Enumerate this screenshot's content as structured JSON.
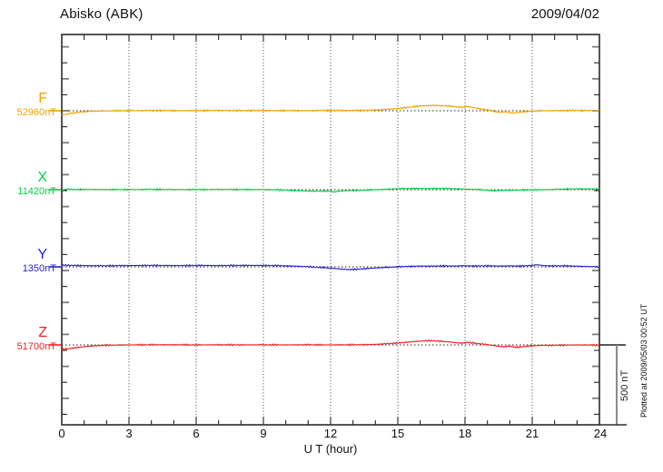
{
  "header": {
    "title": "Abisko (ABK)",
    "date": "2009/04/02"
  },
  "xaxis": {
    "label": "U T (hour)",
    "tick_labels": [
      "0",
      "3",
      "6",
      "9",
      "12",
      "15",
      "18",
      "21",
      "24"
    ],
    "min": 0,
    "max": 24
  },
  "scale_bar": {
    "label": "500 nT",
    "value_nT": 500
  },
  "note": {
    "plotted_at": "Plotted at 2009/05/03 00:52 UT"
  },
  "channels": [
    {
      "id": "F",
      "label": "F",
      "baseline_label": "52960nT",
      "color": "#f2a200"
    },
    {
      "id": "X",
      "label": "X",
      "baseline_label": "11420nT",
      "color": "#00d044"
    },
    {
      "id": "Y",
      "label": "Y",
      "baseline_label": "1350nT",
      "color": "#2626cc"
    },
    {
      "id": "Z",
      "label": "Z",
      "baseline_label": "51700nT",
      "color": "#ee2222"
    }
  ],
  "chart_data": {
    "type": "line",
    "title": "Abisko (ABK) magnetogram",
    "date": "2009/04/02",
    "xlabel": "U T (hour)",
    "x_range": [
      0,
      24
    ],
    "grid": "dotted vertical every 3 h, dotted horizontal at each channel baseline",
    "nT_per_tick_division": 100,
    "scale_bar_nT": 500,
    "series": [
      {
        "name": "F",
        "baseline_nT": 52960,
        "color": "#f2a200",
        "points_hour_offsetnT": [
          [
            0,
            -26
          ],
          [
            0.4,
            -17
          ],
          [
            0.8,
            -8
          ],
          [
            1.3,
            -3
          ],
          [
            2,
            -1
          ],
          [
            3,
            1
          ],
          [
            4,
            2
          ],
          [
            5,
            1
          ],
          [
            6,
            1
          ],
          [
            7,
            2
          ],
          [
            8,
            1
          ],
          [
            9,
            2
          ],
          [
            10,
            1
          ],
          [
            11,
            1
          ],
          [
            12,
            2
          ],
          [
            13,
            2
          ],
          [
            13.8,
            3
          ],
          [
            14.3,
            7
          ],
          [
            15,
            14
          ],
          [
            15.5,
            22
          ],
          [
            16,
            30
          ],
          [
            16.6,
            34
          ],
          [
            17.2,
            30
          ],
          [
            17.6,
            25
          ],
          [
            17.9,
            21
          ],
          [
            18.1,
            27
          ],
          [
            18.4,
            19
          ],
          [
            18.7,
            11
          ],
          [
            19.1,
            3
          ],
          [
            19.5,
            -10
          ],
          [
            19.8,
            -6
          ],
          [
            20.1,
            -14
          ],
          [
            20.5,
            -8
          ],
          [
            20.9,
            -3
          ],
          [
            21.3,
            0
          ],
          [
            22,
            1
          ],
          [
            23,
            2
          ],
          [
            24,
            1
          ]
        ]
      },
      {
        "name": "X",
        "baseline_nT": 11420,
        "color": "#00d044",
        "points_hour_offsetnT": [
          [
            0,
            -3
          ],
          [
            0.2,
            3
          ],
          [
            0.6,
            1
          ],
          [
            1,
            2
          ],
          [
            2,
            1
          ],
          [
            3,
            1
          ],
          [
            4,
            2
          ],
          [
            5,
            1
          ],
          [
            6,
            1
          ],
          [
            7,
            2
          ],
          [
            8,
            1
          ],
          [
            9,
            1
          ],
          [
            9.5,
            0
          ],
          [
            10,
            -3
          ],
          [
            10.5,
            -6
          ],
          [
            11,
            -8
          ],
          [
            11.5,
            -9
          ],
          [
            12,
            -8
          ],
          [
            12.15,
            -15
          ],
          [
            12.35,
            -9
          ],
          [
            12.7,
            -6
          ],
          [
            13,
            -5
          ],
          [
            13.5,
            -3
          ],
          [
            14,
            0
          ],
          [
            14.5,
            3
          ],
          [
            15,
            6
          ],
          [
            15.5,
            7
          ],
          [
            16,
            8
          ],
          [
            16.5,
            7
          ],
          [
            17,
            8
          ],
          [
            17.5,
            6
          ],
          [
            18,
            4
          ],
          [
            18.5,
            2
          ],
          [
            19,
            -3
          ],
          [
            19.3,
            -7
          ],
          [
            19.6,
            -5
          ],
          [
            20,
            -4
          ],
          [
            20.5,
            -2
          ],
          [
            21,
            -1
          ],
          [
            21.5,
            0
          ],
          [
            22,
            2
          ],
          [
            22.5,
            4
          ],
          [
            23,
            5
          ],
          [
            23.5,
            5
          ],
          [
            24,
            6
          ]
        ]
      },
      {
        "name": "Y",
        "baseline_nT": 1350,
        "color": "#2626cc",
        "points_hour_offsetnT": [
          [
            0,
            11
          ],
          [
            0.5,
            9
          ],
          [
            1,
            8
          ],
          [
            2,
            7
          ],
          [
            3,
            8
          ],
          [
            4,
            9
          ],
          [
            5,
            8
          ],
          [
            6,
            9
          ],
          [
            7,
            8
          ],
          [
            8,
            9
          ],
          [
            9,
            9
          ],
          [
            9.5,
            8
          ],
          [
            10,
            6
          ],
          [
            10.5,
            4
          ],
          [
            11,
            1
          ],
          [
            11.5,
            -3
          ],
          [
            12,
            -8
          ],
          [
            12.4,
            -13
          ],
          [
            12.8,
            -17
          ],
          [
            13.2,
            -15
          ],
          [
            13.6,
            -11
          ],
          [
            14,
            -7
          ],
          [
            14.5,
            -3
          ],
          [
            15,
            0
          ],
          [
            15.5,
            3
          ],
          [
            16,
            5
          ],
          [
            16.5,
            4
          ],
          [
            17,
            6
          ],
          [
            17.5,
            5
          ],
          [
            18,
            7
          ],
          [
            18.5,
            5
          ],
          [
            19,
            7
          ],
          [
            19.5,
            5
          ],
          [
            20,
            6
          ],
          [
            20.5,
            5
          ],
          [
            21,
            9
          ],
          [
            21.2,
            13
          ],
          [
            21.5,
            8
          ],
          [
            22,
            6
          ],
          [
            22.5,
            7
          ],
          [
            23,
            4
          ],
          [
            23.5,
            2
          ],
          [
            24,
            0
          ]
        ]
      },
      {
        "name": "Z",
        "baseline_nT": 51700,
        "color": "#ee2222",
        "points_hour_offsetnT": [
          [
            0,
            -28
          ],
          [
            0.4,
            -22
          ],
          [
            0.8,
            -14
          ],
          [
            1.2,
            -8
          ],
          [
            1.6,
            -4
          ],
          [
            2,
            -2
          ],
          [
            3,
            0
          ],
          [
            4,
            1
          ],
          [
            5,
            1
          ],
          [
            6,
            0
          ],
          [
            7,
            1
          ],
          [
            8,
            0
          ],
          [
            9,
            1
          ],
          [
            10,
            0
          ],
          [
            11,
            1
          ],
          [
            12,
            0
          ],
          [
            13,
            1
          ],
          [
            13.7,
            2
          ],
          [
            14.2,
            5
          ],
          [
            15,
            12
          ],
          [
            15.5,
            18
          ],
          [
            16,
            24
          ],
          [
            16.4,
            27
          ],
          [
            16.8,
            24
          ],
          [
            17.2,
            20
          ],
          [
            17.6,
            14
          ],
          [
            17.9,
            11
          ],
          [
            18.1,
            17
          ],
          [
            18.3,
            13
          ],
          [
            18.6,
            8
          ],
          [
            19,
            2
          ],
          [
            19.4,
            -6
          ],
          [
            19.7,
            -12
          ],
          [
            20,
            -8
          ],
          [
            20.3,
            -15
          ],
          [
            20.7,
            -9
          ],
          [
            21,
            -5
          ],
          [
            21.4,
            -3
          ],
          [
            22,
            -2
          ],
          [
            22.5,
            -1
          ],
          [
            23,
            0
          ],
          [
            24,
            -1
          ]
        ]
      }
    ]
  }
}
